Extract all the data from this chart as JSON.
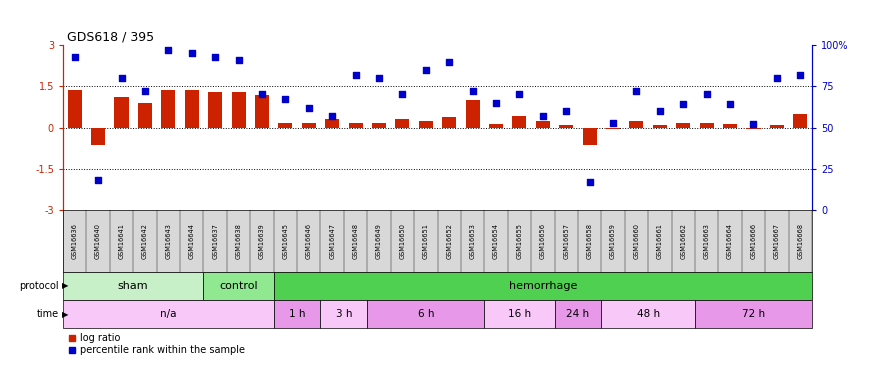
{
  "title": "GDS618 / 395",
  "samples": [
    "GSM16636",
    "GSM16640",
    "GSM16641",
    "GSM16642",
    "GSM16643",
    "GSM16644",
    "GSM16637",
    "GSM16638",
    "GSM16639",
    "GSM16645",
    "GSM16646",
    "GSM16647",
    "GSM16648",
    "GSM16649",
    "GSM16650",
    "GSM16651",
    "GSM16652",
    "GSM16653",
    "GSM16654",
    "GSM16655",
    "GSM16656",
    "GSM16657",
    "GSM16658",
    "GSM16659",
    "GSM16660",
    "GSM16661",
    "GSM16662",
    "GSM16663",
    "GSM16664",
    "GSM16666",
    "GSM16667",
    "GSM16668"
  ],
  "log_ratio": [
    1.35,
    -0.65,
    1.1,
    0.9,
    1.35,
    1.35,
    1.3,
    1.3,
    1.2,
    0.15,
    0.18,
    0.3,
    0.18,
    0.15,
    0.3,
    0.22,
    0.4,
    1.0,
    0.12,
    0.42,
    0.25,
    0.08,
    -0.65,
    -0.05,
    0.22,
    0.08,
    0.15,
    0.18,
    0.12,
    -0.04,
    0.08,
    0.5
  ],
  "percentile_rank": [
    93,
    18,
    80,
    72,
    97,
    95,
    93,
    91,
    70,
    67,
    62,
    57,
    82,
    80,
    70,
    85,
    90,
    72,
    65,
    70,
    57,
    60,
    17,
    53,
    72,
    60,
    64,
    70,
    64,
    52,
    80,
    82
  ],
  "protocol_groups": [
    {
      "label": "sham",
      "start": 0,
      "end": 6,
      "color": "#c8f0c8"
    },
    {
      "label": "control",
      "start": 6,
      "end": 9,
      "color": "#90e890"
    },
    {
      "label": "hemorrhage",
      "start": 9,
      "end": 32,
      "color": "#50d050"
    }
  ],
  "time_groups": [
    {
      "label": "n/a",
      "start": 0,
      "end": 9,
      "color": "#f8c8f8"
    },
    {
      "label": "1 h",
      "start": 9,
      "end": 11,
      "color": "#e898e8"
    },
    {
      "label": "3 h",
      "start": 11,
      "end": 13,
      "color": "#f8c8f8"
    },
    {
      "label": "6 h",
      "start": 13,
      "end": 18,
      "color": "#e898e8"
    },
    {
      "label": "16 h",
      "start": 18,
      "end": 21,
      "color": "#f8c8f8"
    },
    {
      "label": "24 h",
      "start": 21,
      "end": 23,
      "color": "#e898e8"
    },
    {
      "label": "48 h",
      "start": 23,
      "end": 27,
      "color": "#f8c8f8"
    },
    {
      "label": "72 h",
      "start": 27,
      "end": 32,
      "color": "#e898e8"
    }
  ],
  "bar_color": "#cc2200",
  "scatter_color": "#0000cc",
  "ylim_left": [
    -3,
    3
  ],
  "ylim_right": [
    0,
    100
  ],
  "yticks_left": [
    -3,
    -1.5,
    0,
    1.5,
    3
  ],
  "ytick_labels_left": [
    "-3",
    "-1.5",
    "0",
    "1.5",
    "3"
  ],
  "yticks_right": [
    0,
    25,
    50,
    75,
    100
  ],
  "ytick_labels_right": [
    "0",
    "25",
    "50",
    "75",
    "100%"
  ],
  "hlines": [
    1.5,
    -1.5,
    0.0
  ],
  "bg_color": "#ffffff",
  "sample_bg_color": "#d8d8d8"
}
